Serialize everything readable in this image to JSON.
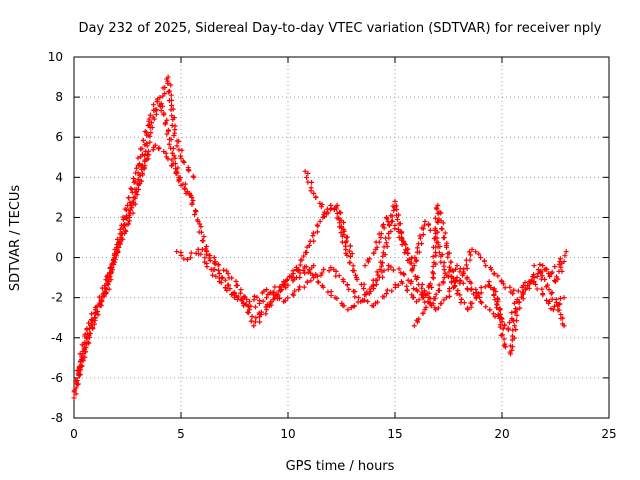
{
  "chart_data": {
    "type": "scatter",
    "title": "Day 232 of 2025, Sidereal Day-to-day VTEC variation (SDTVAR) for receiver nply",
    "xlabel": "GPS time / hours",
    "ylabel": "SDTVAR / TECUs",
    "xlim": [
      0,
      25
    ],
    "ylim": [
      -8,
      10
    ],
    "xticks": [
      0,
      5,
      10,
      15,
      20,
      25
    ],
    "yticks": [
      -8,
      -6,
      -4,
      -2,
      0,
      2,
      4,
      6,
      8,
      10
    ],
    "grid": true,
    "marker": "+",
    "series": [
      {
        "name": "arc-1",
        "color": "#ff0000",
        "points": [
          [
            0.0,
            -7.0
          ],
          [
            0.3,
            -5.2
          ],
          [
            0.6,
            -3.6
          ],
          [
            1.0,
            -2.6
          ],
          [
            1.5,
            -1.8
          ],
          [
            2.0,
            0.5
          ],
          [
            2.5,
            2.6
          ],
          [
            3.0,
            4.6
          ],
          [
            3.5,
            6.8
          ],
          [
            3.9,
            7.9
          ],
          [
            4.2,
            7.2
          ],
          [
            4.6,
            5.2
          ],
          [
            5.0,
            3.6
          ],
          [
            5.5,
            3.0
          ]
        ]
      },
      {
        "name": "arc-2",
        "color": "#ff0000",
        "points": [
          [
            0.1,
            -6.5
          ],
          [
            0.5,
            -4.6
          ],
          [
            1.0,
            -2.8
          ],
          [
            1.6,
            -1.0
          ],
          [
            2.2,
            1.0
          ],
          [
            2.8,
            3.0
          ],
          [
            3.3,
            4.8
          ],
          [
            3.8,
            5.6
          ],
          [
            4.3,
            5.2
          ],
          [
            4.9,
            4.0
          ],
          [
            5.4,
            3.2
          ],
          [
            5.8,
            1.8
          ],
          [
            6.2,
            0.3
          ],
          [
            6.8,
            -0.8
          ],
          [
            7.5,
            -1.8
          ],
          [
            8.2,
            -2.6
          ],
          [
            9.0,
            -2.0
          ],
          [
            9.8,
            -1.2
          ],
          [
            10.5,
            -0.6
          ],
          [
            11.2,
            -0.4
          ]
        ]
      },
      {
        "name": "arc-3",
        "color": "#ff0000",
        "points": [
          [
            0.2,
            -5.8
          ],
          [
            0.7,
            -3.9
          ],
          [
            1.3,
            -2.2
          ],
          [
            1.9,
            0.0
          ],
          [
            2.6,
            2.0
          ],
          [
            3.2,
            4.2
          ],
          [
            3.7,
            7.0
          ],
          [
            4.0,
            7.6
          ],
          [
            4.4,
            9.0
          ],
          [
            4.7,
            6.2
          ],
          [
            5.1,
            4.8
          ],
          [
            5.6,
            4.0
          ]
        ]
      },
      {
        "name": "arc-4",
        "color": "#ff0000",
        "points": [
          [
            4.8,
            0.3
          ],
          [
            5.3,
            -0.1
          ],
          [
            5.8,
            0.4
          ],
          [
            6.2,
            -0.3
          ],
          [
            6.8,
            -1.2
          ],
          [
            7.5,
            -2.0
          ],
          [
            8.2,
            -2.2
          ],
          [
            9.0,
            -1.6
          ],
          [
            9.8,
            -2.2
          ],
          [
            10.5,
            -1.6
          ],
          [
            11.2,
            -1.0
          ],
          [
            12.0,
            -0.5
          ],
          [
            12.6,
            -1.2
          ],
          [
            13.3,
            -2.0
          ],
          [
            14.0,
            -2.4
          ],
          [
            14.6,
            -1.8
          ],
          [
            15.3,
            -1.2
          ],
          [
            16.0,
            -2.2
          ],
          [
            16.6,
            -1.4
          ]
        ]
      },
      {
        "name": "arc-5",
        "color": "#ff0000",
        "points": [
          [
            6.0,
            0.4
          ],
          [
            6.6,
            -0.2
          ],
          [
            7.2,
            -0.8
          ],
          [
            7.8,
            -1.6
          ],
          [
            8.4,
            -3.4
          ],
          [
            9.0,
            -2.6
          ],
          [
            9.7,
            -1.6
          ],
          [
            10.4,
            -1.0
          ],
          [
            11.0,
            -0.6
          ],
          [
            11.6,
            -1.4
          ],
          [
            12.2,
            -2.0
          ],
          [
            12.8,
            -2.6
          ],
          [
            13.4,
            -2.2
          ],
          [
            14.0,
            -1.4
          ],
          [
            14.7,
            -0.4
          ],
          [
            15.4,
            -0.8
          ],
          [
            16.0,
            -1.6
          ],
          [
            16.7,
            -2.4
          ],
          [
            17.3,
            -1.0
          ],
          [
            17.9,
            -0.4
          ],
          [
            18.5,
            -1.2
          ],
          [
            19.0,
            -2.2
          ],
          [
            19.6,
            -2.8
          ],
          [
            20.0,
            -3.2
          ]
        ]
      },
      {
        "name": "arc-6",
        "color": "#ff0000",
        "points": [
          [
            8.5,
            -3.0
          ],
          [
            9.2,
            -2.2
          ],
          [
            9.8,
            -1.4
          ],
          [
            10.4,
            -0.6
          ],
          [
            11.0,
            0.6
          ],
          [
            11.5,
            1.8
          ],
          [
            12.0,
            2.6
          ],
          [
            12.3,
            2.2
          ],
          [
            12.7,
            0.4
          ],
          [
            13.2,
            -1.0
          ],
          [
            13.8,
            -1.8
          ],
          [
            14.3,
            -0.6
          ],
          [
            14.7,
            1.2
          ],
          [
            15.0,
            2.8
          ],
          [
            15.3,
            1.0
          ],
          [
            15.8,
            -0.6
          ],
          [
            16.4,
            -1.8
          ],
          [
            16.9,
            -2.6
          ],
          [
            17.4,
            -2.0
          ],
          [
            17.9,
            -1.0
          ],
          [
            18.4,
            -1.6
          ],
          [
            18.9,
            -1.8
          ]
        ]
      },
      {
        "name": "arc-7",
        "color": "#ff0000",
        "points": [
          [
            10.8,
            4.3
          ],
          [
            11.2,
            3.2
          ],
          [
            11.8,
            2.2
          ],
          [
            12.3,
            2.6
          ],
          [
            12.6,
            1.4
          ],
          [
            13.0,
            0.2
          ]
        ]
      },
      {
        "name": "arc-8",
        "color": "#ff0000",
        "points": [
          [
            13.6,
            -0.4
          ],
          [
            14.1,
            0.4
          ],
          [
            14.6,
            2.0
          ],
          [
            15.0,
            1.6
          ],
          [
            15.4,
            0.8
          ],
          [
            15.9,
            -0.4
          ],
          [
            16.4,
            1.8
          ],
          [
            16.9,
            1.2
          ],
          [
            17.3,
            -0.6
          ],
          [
            17.8,
            -1.4
          ],
          [
            18.2,
            -0.8
          ],
          [
            18.6,
            0.4
          ],
          [
            19.0,
            0.0
          ],
          [
            19.5,
            -0.6
          ],
          [
            20.0,
            -1.2
          ],
          [
            20.5,
            -1.8
          ],
          [
            21.0,
            -1.4
          ],
          [
            21.5,
            -1.0
          ],
          [
            22.0,
            -0.6
          ],
          [
            22.5,
            -1.2
          ],
          [
            22.9,
            -0.2
          ]
        ]
      },
      {
        "name": "arc-9",
        "color": "#ff0000",
        "points": [
          [
            15.9,
            -3.4
          ],
          [
            16.4,
            -2.6
          ],
          [
            16.8,
            -0.8
          ],
          [
            17.0,
            2.6
          ],
          [
            17.4,
            0.6
          ],
          [
            17.9,
            -1.8
          ],
          [
            18.4,
            -2.6
          ],
          [
            18.9,
            -1.8
          ],
          [
            19.4,
            -1.2
          ],
          [
            19.8,
            -2.2
          ],
          [
            20.1,
            -4.4
          ],
          [
            20.4,
            -4.8
          ],
          [
            20.7,
            -2.6
          ],
          [
            21.1,
            -1.6
          ],
          [
            21.5,
            -1.2
          ],
          [
            21.9,
            -1.8
          ],
          [
            22.4,
            -2.6
          ],
          [
            22.9,
            -2.0
          ]
        ]
      },
      {
        "name": "arc-10",
        "color": "#ff0000",
        "points": [
          [
            19.6,
            -1.6
          ],
          [
            20.0,
            -3.2
          ],
          [
            20.3,
            -3.6
          ],
          [
            20.7,
            -2.2
          ],
          [
            21.2,
            -1.4
          ],
          [
            21.7,
            -0.6
          ],
          [
            22.2,
            -1.6
          ],
          [
            22.6,
            -2.4
          ],
          [
            22.9,
            -3.4
          ]
        ]
      },
      {
        "name": "arc-11",
        "color": "#ff0000",
        "points": [
          [
            21.5,
            -0.4
          ],
          [
            21.9,
            -0.4
          ],
          [
            22.3,
            -0.8
          ],
          [
            22.7,
            -0.2
          ],
          [
            23.0,
            0.3
          ]
        ]
      }
    ]
  }
}
